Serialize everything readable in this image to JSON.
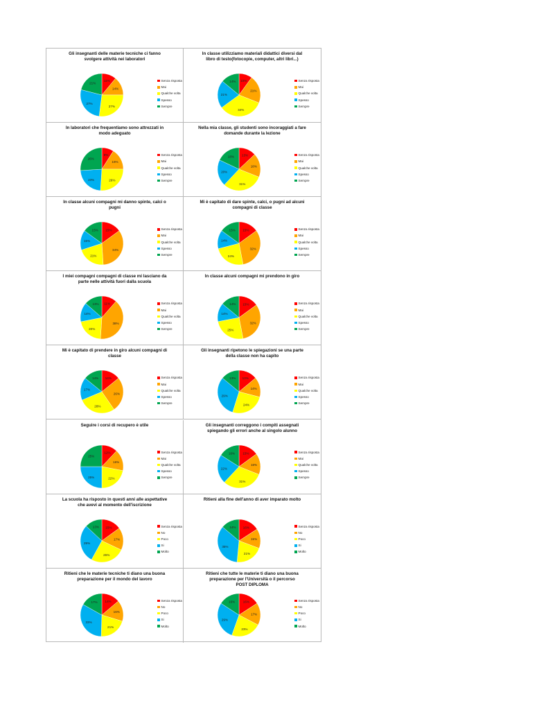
{
  "colors": {
    "senza": "#ff0000",
    "mai": "#ffa500",
    "qualche": "#ffff00",
    "spesso": "#00b0f0",
    "sempre": "#00a550"
  },
  "chart_data": [
    {
      "type": "pie",
      "title": [
        "Gli insegnanti delle materie tecniche ci fanno",
        "svolgere attività nei laboratori"
      ],
      "legend": [
        "Senza risposta",
        "Mai",
        "Qualche volta",
        "Spesso",
        "Sempre"
      ],
      "values": [
        11,
        14,
        27,
        27,
        21
      ],
      "labels": [
        "11%",
        "14%",
        "27%",
        "27%",
        "21%"
      ]
    },
    {
      "type": "pie",
      "title": [
        "In classe utilizziamo materiali didattici diversi dal",
        "libro di testo(fotocopie, computer, altri libri...)"
      ],
      "legend": [
        "Senza risposta",
        "Mai",
        "Qualche volta",
        "Spesso",
        "Sempre"
      ],
      "values": [
        10,
        21,
        34,
        21,
        14
      ],
      "labels": [
        "10%",
        "21%",
        "34%",
        "21%",
        "14%"
      ]
    },
    {
      "type": "pie",
      "title": [
        "In laboratori che frequentiamo sono attrezzati in",
        "modo adeguato"
      ],
      "legend": [
        "Senza risposta",
        "Mai",
        "Qualche volta",
        "Spesso",
        "Sempre"
      ],
      "values": [
        9,
        16,
        26,
        23,
        26
      ],
      "labels": [
        "9%",
        "16%",
        "26%",
        "23%",
        "26%"
      ]
    },
    {
      "type": "pie",
      "title": [
        "Nella mia classe, gli studenti sono incoraggiati a fare",
        "domande durante la lezione"
      ],
      "legend": [
        "Senza risposta",
        "Mai",
        "Qualche volta",
        "Spesso",
        "Sempre"
      ],
      "values": [
        13,
        18,
        31,
        20,
        18
      ],
      "labels": [
        "13%",
        "18%",
        "31%",
        "20%",
        "18%"
      ]
    },
    {
      "type": "pie",
      "title": [
        "In classe alcuni compagni mi danno spinte, calci o",
        "pugni"
      ],
      "legend": [
        "Senza risposta",
        "Mai",
        "Qualche volta",
        "Spesso",
        "Sempre"
      ],
      "values": [
        15,
        34,
        21,
        15,
        15
      ],
      "labels": [
        "15%",
        "34%",
        "21%",
        "15%",
        "15%"
      ]
    },
    {
      "type": "pie",
      "title": [
        "Mi è capitato di dare spinte, calci, o pugni ad alcuni",
        "compagni di classe"
      ],
      "legend": [
        "Senza risposta",
        "Mai",
        "Qualche volta",
        "Spesso",
        "Sempre"
      ],
      "values": [
        15,
        32,
        24,
        14,
        15
      ],
      "labels": [
        "15%",
        "32%",
        "24%",
        "14%",
        "15%"
      ]
    },
    {
      "type": "pie",
      "title": [
        "I miei compagni compagni di classe mi lasciano da",
        "parte nelle attività fuori dalla scuola"
      ],
      "legend": [
        "Senza risposta",
        "Mai",
        "Qualche volta",
        "Spesso",
        "Sempre"
      ],
      "values": [
        11,
        38,
        20,
        14,
        13
      ],
      "labels": [
        "11%",
        "38%",
        "20%",
        "14%",
        "13%"
      ]
    },
    {
      "type": "pie",
      "title": [
        "In classe alcuni compagni mi prendono in giro"
      ],
      "legend": [
        "Senza risposta",
        "Mai",
        "Qualche volta",
        "Spesso",
        "Sempre"
      ],
      "values": [
        15,
        32,
        25,
        14,
        14
      ],
      "labels": [
        "15%",
        "32%",
        "25%",
        "14%",
        "14%"
      ]
    },
    {
      "type": "pie",
      "title": [
        "Mi è capitato di prendere in giro alcuni compagni di",
        "classe"
      ],
      "legend": [
        "Senza risposta",
        "Mai",
        "Qualche volta",
        "Spesso",
        "Sempre"
      ],
      "values": [
        14,
        26,
        28,
        17,
        14
      ],
      "labels": [
        "14%",
        "26%",
        "28%",
        "17%",
        "14%"
      ]
    },
    {
      "type": "pie",
      "title": [
        "Gli insegnanti ripetono le spiegazioni se una parte",
        "della classe non ha capito"
      ],
      "legend": [
        "Senza risposta",
        "Mai",
        "Qualche volta",
        "Spesso",
        "Sempre"
      ],
      "values": [
        13,
        14,
        24,
        29,
        13
      ],
      "labels": [
        "13%",
        "14%",
        "24%",
        "29%",
        "13%"
      ]
    },
    {
      "type": "pie",
      "title": [
        "Seguire i corsi di recupero è utile"
      ],
      "legend": [
        "Senza risposta",
        "Mai",
        "Qualche volta",
        "Spesso",
        "Sempre"
      ],
      "values": [
        12,
        16,
        22,
        25,
        25
      ],
      "labels": [
        "12%",
        "16%",
        "22%",
        "25%",
        "25%"
      ]
    },
    {
      "type": "pie",
      "title": [
        "Gli insegnanti correggono i compiti assegnati",
        "spiegando gli errori anche al singolo alunno"
      ],
      "legend": [
        "Senza risposta",
        "Mai",
        "Qualche volta",
        "Spesso",
        "Sempre"
      ],
      "values": [
        15,
        16,
        31,
        22,
        16
      ],
      "labels": [
        "15%",
        "16%",
        "31%",
        "22%",
        "16%"
      ]
    },
    {
      "type": "pie",
      "title": [
        "La scuola ha risposto in questi anni alle aspettative",
        "che avevi al momento dell'iscrizione"
      ],
      "legend": [
        "Senza risposta",
        "No",
        "Poco",
        "Si",
        "Molto"
      ],
      "values": [
        15,
        17,
        26,
        29,
        13
      ],
      "labels": [
        "15%",
        "17%",
        "26%",
        "29%",
        "13%"
      ]
    },
    {
      "type": "pie",
      "title": [
        "Ritieni alla fine dell'anno di aver imparato molto"
      ],
      "legend": [
        "Senza risposta",
        "No",
        "Poco",
        "Si",
        "Molto"
      ],
      "values": [
        16,
        15,
        21,
        35,
        14
      ],
      "labels": [
        "16%",
        "15%",
        "21%",
        "35%",
        "14%"
      ]
    },
    {
      "type": "pie",
      "title": [
        "Ritieni che le materie tecniche ti diano una buona",
        "preparazione per il mondo del lavoro"
      ],
      "legend": [
        "Senza risposta",
        "No",
        "Poco",
        "Si",
        "Molto"
      ],
      "values": [
        14,
        16,
        21,
        33,
        17
      ],
      "labels": [
        "14%",
        "16%",
        "21%",
        "33%",
        "17%"
      ]
    },
    {
      "type": "pie",
      "title": [
        "Ritieni che tutte le materie ti diano una buona",
        "preparazione per l'Università o il percorso",
        "POST DIPLOMA"
      ],
      "legend": [
        "Senza risposta",
        "No",
        "Poco",
        "Si",
        "Molto"
      ],
      "values": [
        16,
        17,
        23,
        29,
        16
      ],
      "labels": [
        "16%",
        "17%",
        "23%",
        "29%",
        "16%"
      ]
    }
  ]
}
